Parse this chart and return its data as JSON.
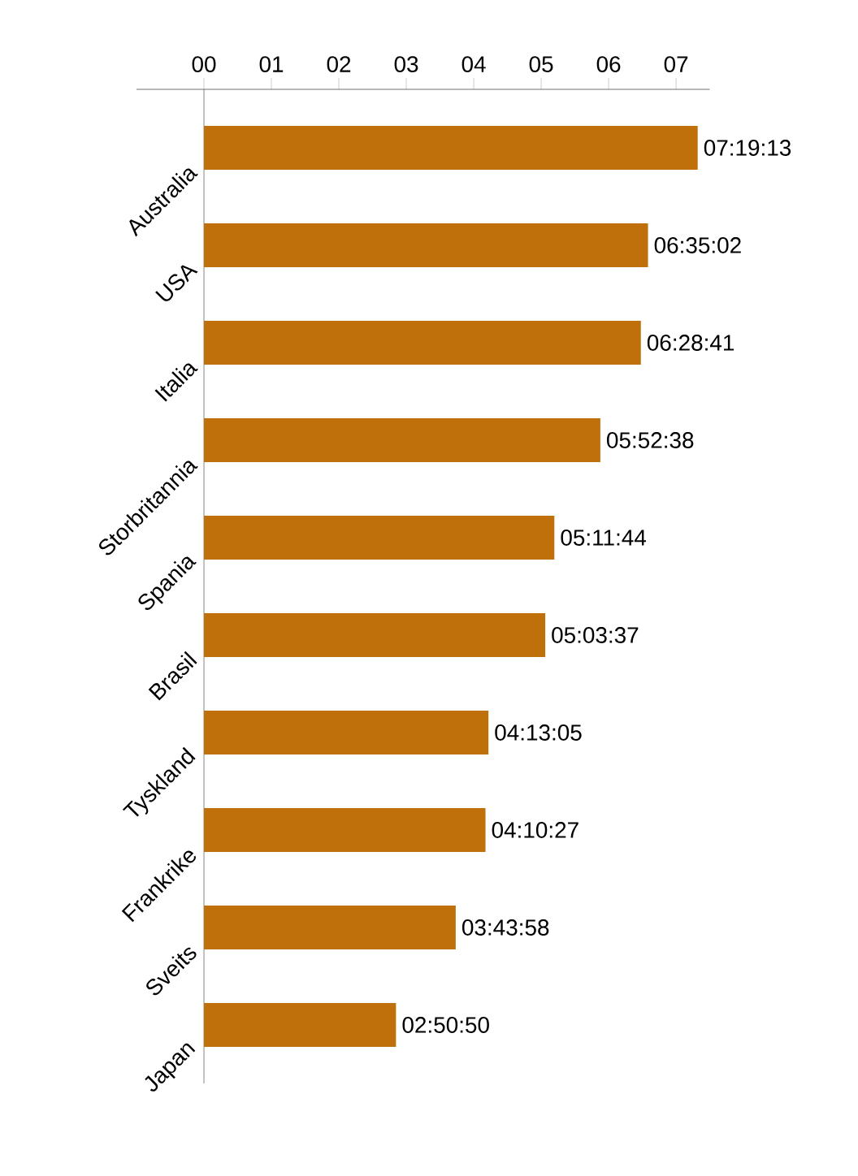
{
  "chart_data": {
    "type": "bar",
    "orientation": "horizontal",
    "categories": [
      "Australia",
      "USA",
      "Italia",
      "Storbritannia",
      "Spania",
      "Brasil",
      "Tyskland",
      "Frankrike",
      "Sveits",
      "Japan"
    ],
    "values": [
      7.3203,
      6.5839,
      6.4781,
      5.8772,
      5.1956,
      5.0603,
      4.2181,
      4.1742,
      3.7328,
      2.8472
    ],
    "value_labels": [
      "07:19:13",
      "06:35:02",
      "06:28:41",
      "05:52:38",
      "05:11:44",
      "05:03:37",
      "04:13:05",
      "04:10:27",
      "03:43:58",
      "02:50:50"
    ],
    "color": "#c0700a",
    "xlim": [
      -1,
      7.5
    ],
    "xticks": [
      {
        "value": 0,
        "label": "00"
      },
      {
        "value": 1,
        "label": "01"
      },
      {
        "value": 2,
        "label": "02"
      },
      {
        "value": 3,
        "label": "03"
      },
      {
        "value": 4,
        "label": "04"
      },
      {
        "value": 5,
        "label": "05"
      },
      {
        "value": 6,
        "label": "06"
      },
      {
        "value": 7,
        "label": "07"
      }
    ],
    "grid": false
  }
}
